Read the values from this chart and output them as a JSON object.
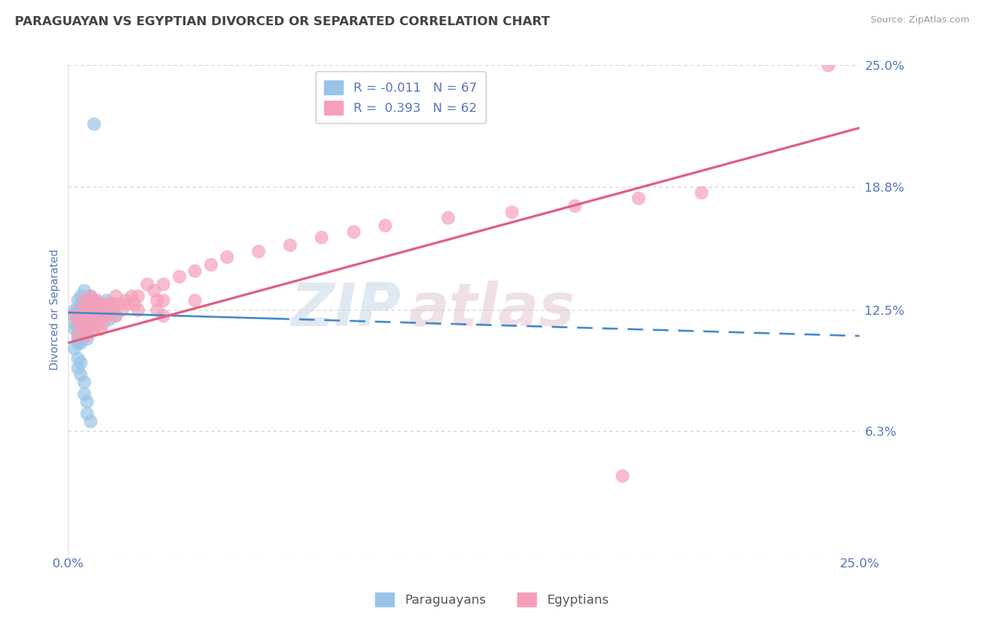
{
  "title": "PARAGUAYAN VS EGYPTIAN DIVORCED OR SEPARATED CORRELATION CHART",
  "source": "Source: ZipAtlas.com",
  "ylabel": "Divorced or Separated",
  "legend_label_paraguayans": "Paraguayans",
  "legend_label_egyptians": "Egyptians",
  "legend_r1": "R = -0.011",
  "legend_n1": "N = 67",
  "legend_r2": "R =  0.393",
  "legend_n2": "N = 62",
  "xmin": 0.0,
  "xmax": 0.25,
  "ymin": 0.0,
  "ymax": 0.25,
  "yticks": [
    0.0,
    0.063,
    0.125,
    0.188,
    0.25
  ],
  "ytick_labels": [
    "",
    "6.3%",
    "12.5%",
    "18.8%",
    "25.0%"
  ],
  "grid_color": "#cccccc",
  "bg_color": "#ffffff",
  "paraguayan_color": "#99c4e8",
  "egyptian_color": "#f5a0b8",
  "paraguayan_trend_color": "#4488cc",
  "egyptian_trend_color": "#e06080",
  "title_color": "#444444",
  "right_label_color": "#5577bb",
  "ylabel_color": "#5577bb",
  "watermark_zip": "ZIP",
  "watermark_atlas": "atlas",
  "watermark_color": "#d8e4f0",
  "watermark_color2": "#e8d0d8",
  "paraguayan_trend_intercept": 0.1235,
  "paraguayan_trend_slope": -0.048,
  "egyptian_trend_intercept": 0.108,
  "egyptian_trend_slope": 0.44,
  "paraguayan_dots": [
    [
      0.002,
      0.125
    ],
    [
      0.002,
      0.122
    ],
    [
      0.002,
      0.118
    ],
    [
      0.002,
      0.115
    ],
    [
      0.003,
      0.13
    ],
    [
      0.003,
      0.125
    ],
    [
      0.003,
      0.122
    ],
    [
      0.003,
      0.118
    ],
    [
      0.003,
      0.115
    ],
    [
      0.003,
      0.11
    ],
    [
      0.003,
      0.108
    ],
    [
      0.004,
      0.132
    ],
    [
      0.004,
      0.128
    ],
    [
      0.004,
      0.125
    ],
    [
      0.004,
      0.122
    ],
    [
      0.004,
      0.118
    ],
    [
      0.004,
      0.115
    ],
    [
      0.004,
      0.112
    ],
    [
      0.004,
      0.108
    ],
    [
      0.005,
      0.135
    ],
    [
      0.005,
      0.13
    ],
    [
      0.005,
      0.128
    ],
    [
      0.005,
      0.125
    ],
    [
      0.005,
      0.122
    ],
    [
      0.005,
      0.118
    ],
    [
      0.005,
      0.115
    ],
    [
      0.005,
      0.112
    ],
    [
      0.006,
      0.13
    ],
    [
      0.006,
      0.128
    ],
    [
      0.006,
      0.125
    ],
    [
      0.006,
      0.122
    ],
    [
      0.006,
      0.118
    ],
    [
      0.006,
      0.115
    ],
    [
      0.006,
      0.11
    ],
    [
      0.007,
      0.132
    ],
    [
      0.007,
      0.128
    ],
    [
      0.007,
      0.125
    ],
    [
      0.007,
      0.122
    ],
    [
      0.007,
      0.118
    ],
    [
      0.008,
      0.13
    ],
    [
      0.008,
      0.125
    ],
    [
      0.008,
      0.12
    ],
    [
      0.008,
      0.115
    ],
    [
      0.009,
      0.128
    ],
    [
      0.009,
      0.122
    ],
    [
      0.009,
      0.118
    ],
    [
      0.01,
      0.125
    ],
    [
      0.01,
      0.12
    ],
    [
      0.011,
      0.128
    ],
    [
      0.011,
      0.122
    ],
    [
      0.012,
      0.13
    ],
    [
      0.012,
      0.122
    ],
    [
      0.013,
      0.128
    ],
    [
      0.013,
      0.12
    ],
    [
      0.014,
      0.125
    ],
    [
      0.015,
      0.122
    ],
    [
      0.002,
      0.105
    ],
    [
      0.003,
      0.1
    ],
    [
      0.003,
      0.095
    ],
    [
      0.004,
      0.098
    ],
    [
      0.004,
      0.092
    ],
    [
      0.005,
      0.088
    ],
    [
      0.005,
      0.082
    ],
    [
      0.006,
      0.078
    ],
    [
      0.006,
      0.072
    ],
    [
      0.007,
      0.068
    ],
    [
      0.008,
      0.22
    ]
  ],
  "egyptian_dots": [
    [
      0.002,
      0.122
    ],
    [
      0.003,
      0.118
    ],
    [
      0.003,
      0.112
    ],
    [
      0.004,
      0.125
    ],
    [
      0.004,
      0.118
    ],
    [
      0.005,
      0.13
    ],
    [
      0.005,
      0.122
    ],
    [
      0.005,
      0.115
    ],
    [
      0.006,
      0.128
    ],
    [
      0.006,
      0.12
    ],
    [
      0.006,
      0.112
    ],
    [
      0.007,
      0.132
    ],
    [
      0.007,
      0.125
    ],
    [
      0.007,
      0.118
    ],
    [
      0.008,
      0.128
    ],
    [
      0.008,
      0.122
    ],
    [
      0.008,
      0.115
    ],
    [
      0.009,
      0.13
    ],
    [
      0.009,
      0.122
    ],
    [
      0.01,
      0.128
    ],
    [
      0.01,
      0.12
    ],
    [
      0.01,
      0.115
    ],
    [
      0.011,
      0.125
    ],
    [
      0.011,
      0.118
    ],
    [
      0.012,
      0.128
    ],
    [
      0.012,
      0.122
    ],
    [
      0.013,
      0.125
    ],
    [
      0.014,
      0.128
    ],
    [
      0.015,
      0.132
    ],
    [
      0.015,
      0.122
    ],
    [
      0.016,
      0.128
    ],
    [
      0.017,
      0.125
    ],
    [
      0.018,
      0.13
    ],
    [
      0.019,
      0.128
    ],
    [
      0.02,
      0.132
    ],
    [
      0.021,
      0.128
    ],
    [
      0.022,
      0.132
    ],
    [
      0.022,
      0.125
    ],
    [
      0.025,
      0.138
    ],
    [
      0.027,
      0.135
    ],
    [
      0.028,
      0.13
    ],
    [
      0.028,
      0.125
    ],
    [
      0.03,
      0.138
    ],
    [
      0.03,
      0.13
    ],
    [
      0.03,
      0.122
    ],
    [
      0.035,
      0.142
    ],
    [
      0.04,
      0.145
    ],
    [
      0.04,
      0.13
    ],
    [
      0.045,
      0.148
    ],
    [
      0.05,
      0.152
    ],
    [
      0.06,
      0.155
    ],
    [
      0.07,
      0.158
    ],
    [
      0.08,
      0.162
    ],
    [
      0.09,
      0.165
    ],
    [
      0.1,
      0.168
    ],
    [
      0.12,
      0.172
    ],
    [
      0.14,
      0.175
    ],
    [
      0.16,
      0.178
    ],
    [
      0.18,
      0.182
    ],
    [
      0.2,
      0.185
    ],
    [
      0.24,
      0.25
    ],
    [
      0.175,
      0.04
    ]
  ]
}
